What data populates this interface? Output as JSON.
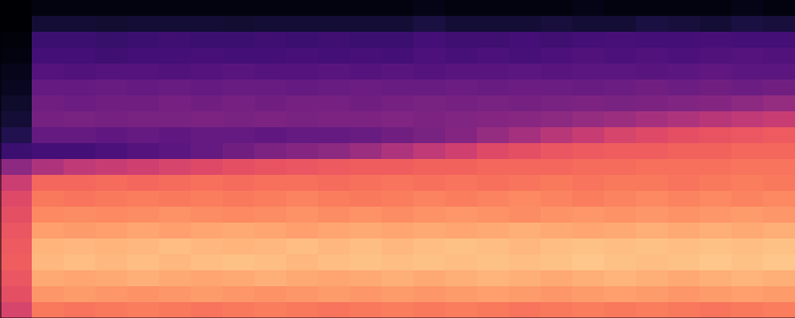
{
  "chart_data": {
    "type": "heatmap",
    "color": "magma",
    "tick_labels": false,
    "xlim": [
      0,
      25
    ],
    "ylim": [
      0,
      20
    ],
    "zlim": [
      0,
      100
    ],
    "cells": [
      [
        0,
        3,
        3,
        3,
        3,
        3,
        3,
        3,
        3,
        3,
        3,
        3,
        3,
        4,
        3,
        3,
        3,
        3,
        4,
        3,
        3,
        3,
        3,
        4,
        3
      ],
      [
        0,
        10,
        10,
        9,
        10,
        10,
        10,
        9,
        10,
        10,
        10,
        10,
        10,
        12,
        10,
        10,
        10,
        11,
        10,
        10,
        12,
        11,
        10,
        12,
        11
      ],
      [
        2,
        20,
        20,
        19,
        20,
        21,
        20,
        20,
        21,
        20,
        21,
        20,
        20,
        22,
        21,
        21,
        22,
        21,
        22,
        23,
        22,
        22,
        23,
        22,
        22
      ],
      [
        3,
        22,
        22,
        21,
        22,
        22,
        23,
        22,
        22,
        23,
        22,
        23,
        22,
        24,
        23,
        24,
        23,
        24,
        25,
        24,
        25,
        24,
        25,
        26,
        25
      ],
      [
        5,
        26,
        25,
        26,
        26,
        25,
        26,
        27,
        26,
        26,
        27,
        26,
        27,
        26,
        27,
        27,
        28,
        27,
        28,
        28,
        27,
        28,
        29,
        28,
        28
      ],
      [
        6,
        30,
        30,
        31,
        30,
        31,
        30,
        31,
        31,
        30,
        31,
        32,
        31,
        31,
        32,
        31,
        32,
        32,
        31,
        32,
        33,
        32,
        33,
        32,
        33
      ],
      [
        8,
        33,
        32,
        33,
        33,
        34,
        33,
        34,
        33,
        34,
        34,
        33,
        34,
        35,
        34,
        35,
        34,
        35,
        36,
        35,
        36,
        37,
        38,
        40,
        42
      ],
      [
        10,
        34,
        35,
        34,
        35,
        35,
        36,
        35,
        36,
        35,
        36,
        36,
        37,
        36,
        37,
        38,
        39,
        40,
        42,
        44,
        46,
        48,
        50,
        52,
        54
      ],
      [
        14,
        30,
        30,
        29,
        30,
        29,
        30,
        30,
        29,
        30,
        30,
        31,
        33,
        35,
        38,
        42,
        46,
        50,
        54,
        58,
        60,
        62,
        63,
        64,
        65
      ],
      [
        20,
        22,
        22,
        24,
        26,
        28,
        30,
        33,
        36,
        38,
        40,
        44,
        48,
        52,
        56,
        60,
        62,
        64,
        65,
        66,
        66,
        67,
        67,
        68,
        68
      ],
      [
        40,
        48,
        52,
        54,
        56,
        58,
        60,
        62,
        63,
        64,
        65,
        66,
        66,
        67,
        67,
        68,
        68,
        68,
        69,
        69,
        70,
        70,
        70,
        71,
        71
      ],
      [
        55,
        68,
        68,
        69,
        68,
        69,
        70,
        69,
        70,
        70,
        69,
        70,
        71,
        70,
        71,
        70,
        71,
        72,
        71,
        72,
        72,
        71,
        72,
        73,
        72
      ],
      [
        60,
        72,
        71,
        72,
        73,
        72,
        73,
        72,
        73,
        74,
        73,
        72,
        73,
        74,
        73,
        74,
        75,
        74,
        73,
        74,
        75,
        74,
        75,
        74,
        75
      ],
      [
        62,
        75,
        76,
        75,
        76,
        77,
        76,
        75,
        76,
        77,
        76,
        77,
        76,
        77,
        78,
        77,
        76,
        77,
        78,
        77,
        78,
        77,
        78,
        79,
        78
      ],
      [
        64,
        80,
        79,
        80,
        81,
        80,
        81,
        82,
        81,
        80,
        81,
        82,
        81,
        82,
        81,
        82,
        83,
        82,
        81,
        82,
        83,
        82,
        83,
        82,
        83
      ],
      [
        65,
        84,
        85,
        84,
        85,
        86,
        85,
        84,
        85,
        86,
        85,
        86,
        85,
        86,
        87,
        86,
        85,
        86,
        87,
        86,
        87,
        86,
        87,
        86,
        87
      ],
      [
        66,
        85,
        86,
        85,
        86,
        85,
        86,
        87,
        86,
        85,
        86,
        87,
        86,
        87,
        86,
        87,
        86,
        87,
        88,
        87,
        86,
        87,
        88,
        87,
        88
      ],
      [
        64,
        82,
        81,
        82,
        83,
        82,
        81,
        82,
        83,
        82,
        81,
        82,
        83,
        82,
        83,
        84,
        83,
        82,
        83,
        84,
        83,
        82,
        83,
        84,
        83
      ],
      [
        62,
        78,
        79,
        78,
        77,
        78,
        79,
        78,
        77,
        78,
        79,
        78,
        79,
        78,
        79,
        80,
        79,
        78,
        79,
        80,
        79,
        78,
        79,
        80,
        79
      ],
      [
        58,
        72,
        71,
        72,
        73,
        72,
        71,
        72,
        73,
        72,
        71,
        72,
        73,
        72,
        73,
        72,
        71,
        72,
        73,
        72,
        73,
        72,
        71,
        72,
        73
      ]
    ]
  }
}
